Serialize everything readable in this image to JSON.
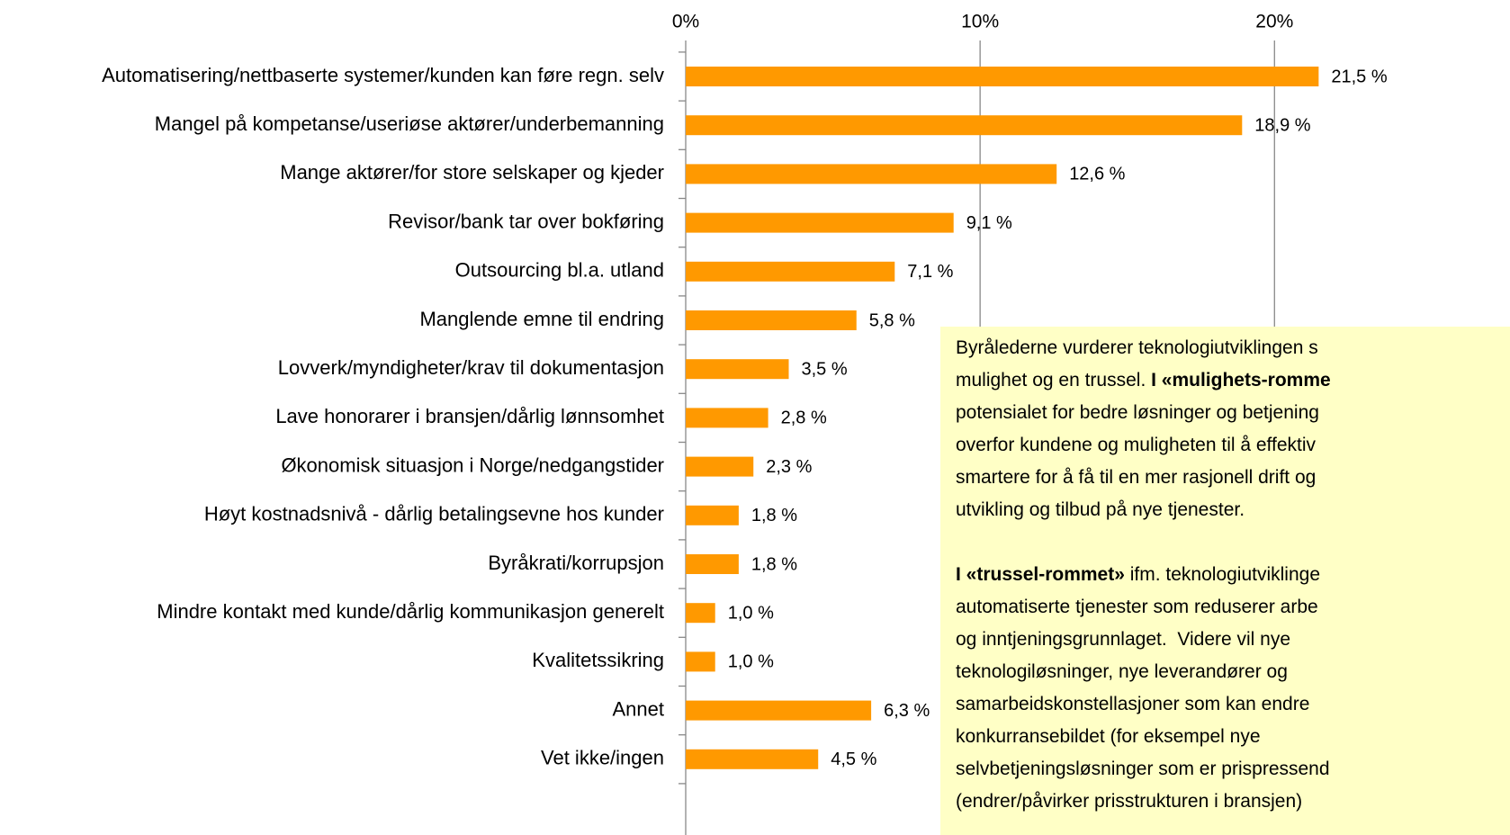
{
  "chart_data": {
    "type": "barh",
    "categories": [
      "Automatisering/nettbaserte systemer/kunden kan føre regn. selv",
      "Mangel på kompetanse/useriøse aktører/underbemanning",
      "Mange aktører/for store selskaper og kjeder",
      "Revisor/bank tar over bokføring",
      "Outsourcing bl.a. utland",
      "Manglende emne til endring",
      "Lovverk/myndigheter/krav til dokumentasjon",
      "Lave honorarer i bransjen/dårlig lønnsomhet",
      "Økonomisk situasjon i Norge/nedgangstider",
      "Høyt kostnadsnivå - dårlig betalingsevne hos kunder",
      "Byråkrati/korrupsjon",
      "Mindre kontakt med kunde/dårlig kommunikasjon generelt",
      "Kvalitetssikring",
      "Annet",
      "Vet ikke/ingen"
    ],
    "values": [
      21.5,
      18.9,
      12.6,
      9.1,
      7.1,
      5.8,
      3.5,
      2.8,
      2.3,
      1.8,
      1.8,
      1.0,
      1.0,
      6.3,
      4.5
    ],
    "value_labels": [
      "21,5 %",
      "18,9 %",
      "12,6 %",
      "9,1 %",
      "7,1 %",
      "5,8 %",
      "3,5 %",
      "2,8 %",
      "2,3 %",
      "1,8 %",
      "1,8 %",
      "1,0 %",
      "1,0 %",
      "6,3 %",
      "4,5 %"
    ],
    "color": "#ff9900",
    "xlim": [
      0,
      28
    ],
    "xticks": [
      {
        "value": 0,
        "label": "0%"
      },
      {
        "value": 10,
        "label": "10%"
      },
      {
        "value": 20,
        "label": "20%"
      }
    ],
    "grid": true,
    "annotation": {
      "color": "#ffffc6",
      "paragraphs": [
        [
          [
            {
              "text": "Byrålederne vurderer teknologiutviklingen s"
            }
          ],
          [
            {
              "text": "mulighet og en trussel. "
            },
            {
              "text": "I «mulighets-romme",
              "bold": true
            }
          ],
          [
            {
              "text": "potensialet for bedre løsninger og betjening"
            }
          ],
          [
            {
              "text": "overfor kundene og muligheten til å effektiv"
            }
          ],
          [
            {
              "text": "smartere for å få til en mer rasjonell drift og"
            }
          ],
          [
            {
              "text": "utvikling og tilbud på nye tjenester."
            }
          ]
        ],
        [
          [
            {
              "text": "I «trussel-rommet»",
              "bold": true
            },
            {
              "text": " ifm. teknologiutviklinge"
            }
          ],
          [
            {
              "text": "automatiserte tjenester som reduserer arbe"
            }
          ],
          [
            {
              "text": "og inntjeningsgrunnlaget.  Videre vil nye"
            }
          ],
          [
            {
              "text": "teknologiløsninger, nye leverandører og"
            }
          ],
          [
            {
              "text": "samarbeidskonstellasjoner som kan endre"
            }
          ],
          [
            {
              "text": "konkurransebildet (for eksempel nye"
            }
          ],
          [
            {
              "text": "selvbetjeningsløsninger som er prispressend"
            }
          ],
          [
            {
              "text": "(endrer/påvirker prisstrukturen i bransjen)"
            }
          ]
        ]
      ]
    }
  }
}
